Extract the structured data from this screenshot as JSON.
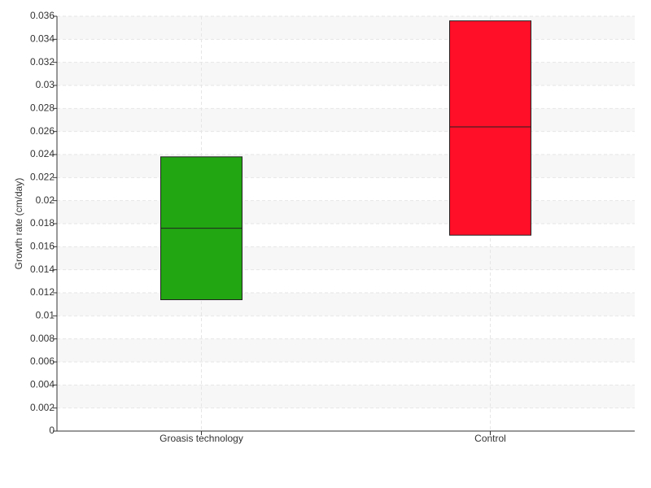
{
  "chart_data": {
    "type": "box",
    "y_label": "Growth rate (cm/day)",
    "categories": [
      "Groasis technology",
      "Control"
    ],
    "low": [
      0.0114,
      0.017
    ],
    "median": [
      0.0176,
      0.0264
    ],
    "high": [
      0.0238,
      0.0356
    ],
    "colors": [
      "#22a612",
      "#ff0f28"
    ],
    "ylim": [
      0,
      0.036
    ],
    "yticks": [
      0,
      0.002,
      0.004,
      0.006,
      0.008,
      0.01,
      0.012,
      0.014,
      0.016,
      0.018,
      0.02,
      0.022,
      0.024,
      0.026,
      0.028,
      0.03,
      0.032,
      0.034,
      0.036
    ],
    "grid": true
  }
}
